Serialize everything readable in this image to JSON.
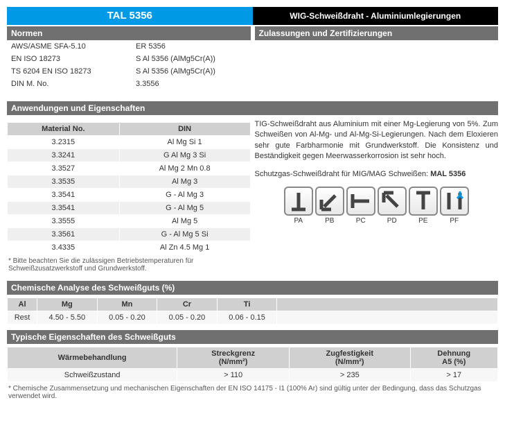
{
  "header": {
    "product": "TAL 5356",
    "category": "WIG-Schweißdraht - Aluminiumlegierungen"
  },
  "norms": {
    "title": "Normen",
    "rows": [
      {
        "label": "AWS/ASME SFA-5.10",
        "value": "ER 5356"
      },
      {
        "label": "EN ISO 18273",
        "value": "S Al 5356 (AlMg5Cr(A))"
      },
      {
        "label": "TS 6204 EN ISO 18273",
        "value": "S Al 5356 (AlMg5Cr(A))"
      },
      {
        "label": "DIN M. No.",
        "value": "3.3556"
      }
    ]
  },
  "approvals": {
    "title": "Zulassungen und Zertifizierungen"
  },
  "applications": {
    "title": "Anwendungen und Eigenschaften",
    "table": {
      "columns": [
        "Material No.",
        "DIN"
      ],
      "rows": [
        [
          "3.2315",
          "Al Mg Si 1"
        ],
        [
          "3.3241",
          "G Al Mg 3 Si"
        ],
        [
          "3.3527",
          "Al Mg 2 Mn 0.8"
        ],
        [
          "3.3535",
          "Al Mg 3"
        ],
        [
          "3.3541",
          "G - Al Mg 3"
        ],
        [
          "3.3541",
          "G - Al Mg 5"
        ],
        [
          "3.3555",
          "Al Mg 5"
        ],
        [
          "3.3561",
          "G - Al Mg 5 Si"
        ],
        [
          "3.4335",
          "Al Zn 4.5 Mg 1"
        ]
      ]
    },
    "note": "* Bitte beachten Sie die zulässigen Betriebstemperaturen für Schweißzusatzwerkstoff und Grundwerkstoff.",
    "description": "TIG-Schweißdraht aus Aluminium mit einer Mg-Legierung von 5%. Zum Schweißen von Al-Mg- und Al-Mg-Si-Legierungen. Nach dem Eloxieren sehr gute Farbharmonie mit Grundwerkstoff. Die Konsistenz und Beständigkeit gegen Meerwasserkorrosion ist sehr hoch.",
    "description2_prefix": "Schutzgas-Schweißdraht für MIG/MAG Schweißen: ",
    "description2_value": "MAL 5356",
    "positions": [
      "PA",
      "PB",
      "PC",
      "PD",
      "PE",
      "PF"
    ]
  },
  "chemistry": {
    "title": "Chemische Analyse des Schweißguts (%)",
    "columns": [
      "Al",
      "Mg",
      "Mn",
      "Cr",
      "Ti"
    ],
    "row": [
      "Rest",
      "4.50 - 5.50",
      "0.05 - 0.20",
      "0.05 - 0.20",
      "0.06 - 0.15"
    ]
  },
  "properties": {
    "title": "Typische Eigenschaften des Schweißguts",
    "columns": [
      "Wärmebehandlung",
      "Streckgrenz\n(N/mm²)",
      "Zugfestigkeit\n(N/mm²)",
      "Dehnung\nA5 (%)"
    ],
    "row": [
      "Schweißzustand",
      "> 110",
      "> 235",
      "> 17"
    ],
    "note": "* Chemische Zusammensetzung und mechanischen Eigenschaften der EN ISO 14175 - I1 (100% Ar) sind gültig unter der Bedingung, dass das Schutzgas verwendet wird."
  },
  "colors": {
    "blue": "#0099e6",
    "black": "#000000",
    "gray_header": "#707070",
    "gray_th": "#d0d0d0",
    "arrow_blue": "#0099e6"
  }
}
